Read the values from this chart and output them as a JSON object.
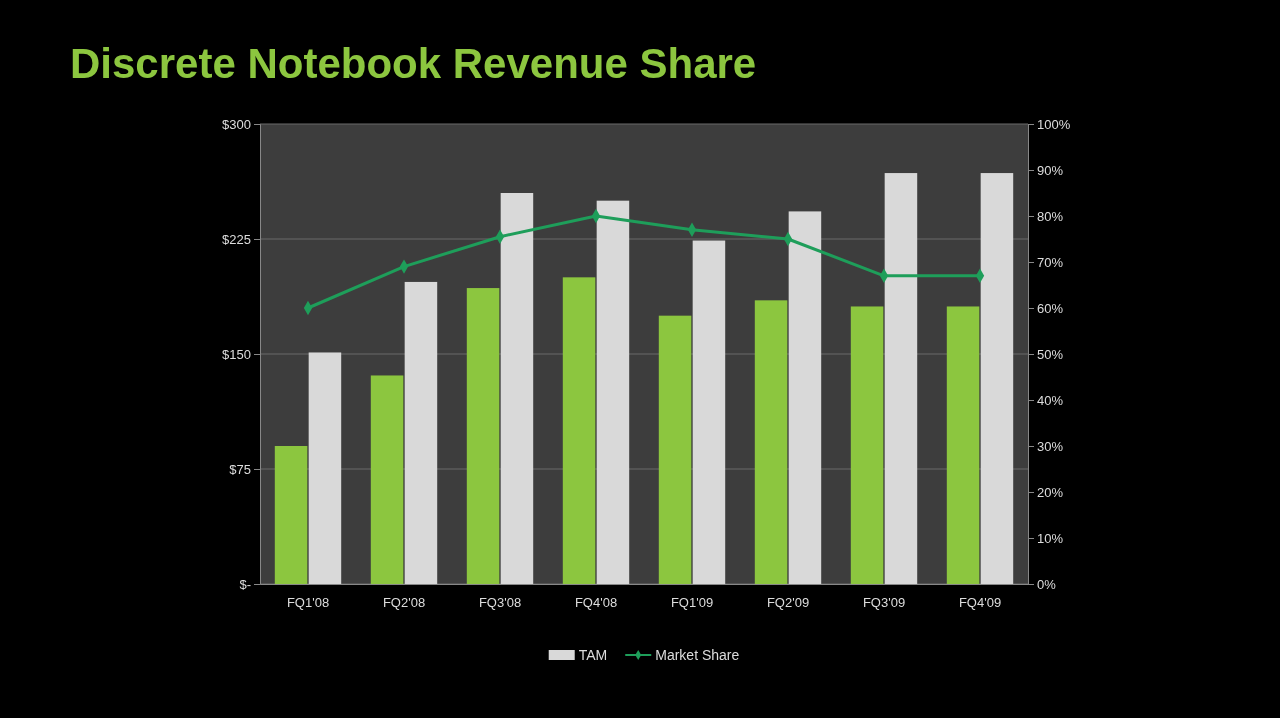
{
  "chart_data": {
    "type": "bar",
    "title": "Discrete Notebook Revenue Share",
    "categories": [
      "FQ1'08",
      "FQ2'08",
      "FQ3'08",
      "FQ4'08",
      "FQ1'09",
      "FQ2'09",
      "FQ3'09",
      "FQ4'09"
    ],
    "series": [
      {
        "color": "#8cc63f",
        "values": [
          90,
          136,
          193,
          200,
          175,
          185,
          181,
          181
        ]
      },
      {
        "name": "TAM",
        "color": "#d9d9d9",
        "values": [
          151,
          197,
          255,
          250,
          224,
          243,
          268,
          268
        ]
      },
      {
        "name": "Market Share",
        "type": "line",
        "axis": "y2",
        "color": "#1e9e5a",
        "values": [
          60,
          69,
          75.5,
          80,
          77,
          75,
          67,
          67
        ]
      }
    ],
    "ylim": [
      0,
      300
    ],
    "yticks": [
      {
        "value": 0,
        "label": "$-"
      },
      {
        "value": 75,
        "label": "$75"
      },
      {
        "value": 150,
        "label": "$150"
      },
      {
        "value": 225,
        "label": "$225"
      },
      {
        "value": 300,
        "label": "$300"
      }
    ],
    "y2lim": [
      0,
      100
    ],
    "y2ticks": [
      {
        "value": 0,
        "label": "0%"
      },
      {
        "value": 10,
        "label": "10%"
      },
      {
        "value": 20,
        "label": "20%"
      },
      {
        "value": 30,
        "label": "30%"
      },
      {
        "value": 40,
        "label": "40%"
      },
      {
        "value": 50,
        "label": "50%"
      },
      {
        "value": 60,
        "label": "60%"
      },
      {
        "value": 70,
        "label": "70%"
      },
      {
        "value": 80,
        "label": "80%"
      },
      {
        "value": 90,
        "label": "90%"
      },
      {
        "value": 100,
        "label": "100%"
      }
    ],
    "grid": "y",
    "legend": "bottom",
    "marker": "diamond"
  }
}
